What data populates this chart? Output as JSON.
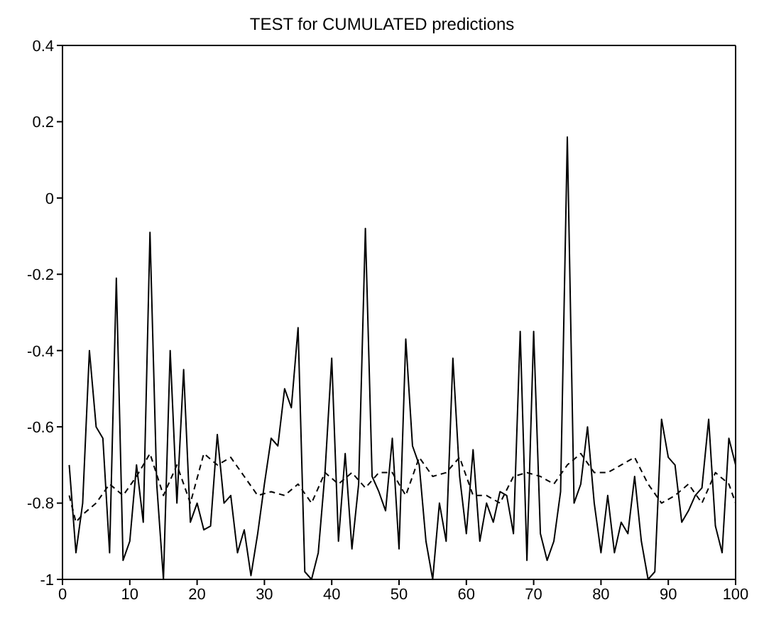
{
  "chart_data": {
    "type": "line",
    "title": "TEST for CUMULATED predictions",
    "xlim": [
      0,
      100
    ],
    "ylim": [
      -1,
      0.4
    ],
    "xticks": [
      0,
      10,
      20,
      30,
      40,
      50,
      60,
      70,
      80,
      90,
      100
    ],
    "yticks": [
      -1,
      -0.8,
      -0.6,
      -0.4,
      -0.2,
      0,
      0.2,
      0.4
    ],
    "grid": false,
    "legend": false,
    "marker": "none",
    "series": [
      {
        "color": "#000000",
        "line_style": "solid",
        "x": [
          1,
          2,
          3,
          4,
          5,
          6,
          7,
          8,
          9,
          10,
          11,
          12,
          13,
          14,
          15,
          16,
          17,
          18,
          19,
          20,
          21,
          22,
          23,
          24,
          25,
          26,
          27,
          28,
          29,
          30,
          31,
          32,
          33,
          34,
          35,
          36,
          37,
          38,
          39,
          40,
          41,
          42,
          43,
          44,
          45,
          46,
          47,
          48,
          49,
          50,
          51,
          52,
          53,
          54,
          55,
          56,
          57,
          58,
          59,
          60,
          61,
          62,
          63,
          64,
          65,
          66,
          67,
          68,
          69,
          70,
          71,
          72,
          73,
          74,
          75,
          76,
          77,
          78,
          79,
          80,
          81,
          82,
          83,
          84,
          85,
          86,
          87,
          88,
          89,
          90,
          91,
          92,
          93,
          94,
          95,
          96,
          97,
          98,
          99,
          100
        ],
        "values": [
          -0.7,
          -0.93,
          -0.8,
          -0.4,
          -0.6,
          -0.63,
          -0.93,
          -0.21,
          -0.95,
          -0.9,
          -0.7,
          -0.85,
          -0.09,
          -0.75,
          -1.0,
          -0.4,
          -0.8,
          -0.45,
          -0.85,
          -0.8,
          -0.87,
          -0.86,
          -0.62,
          -0.8,
          -0.78,
          -0.93,
          -0.87,
          -0.99,
          -0.88,
          -0.75,
          -0.63,
          -0.65,
          -0.5,
          -0.55,
          -0.34,
          -0.98,
          -1.0,
          -0.93,
          -0.72,
          -0.42,
          -0.9,
          -0.67,
          -0.92,
          -0.75,
          -0.08,
          -0.73,
          -0.77,
          -0.82,
          -0.63,
          -0.92,
          -0.37,
          -0.65,
          -0.7,
          -0.9,
          -1.0,
          -0.8,
          -0.9,
          -0.42,
          -0.73,
          -0.88,
          -0.66,
          -0.9,
          -0.8,
          -0.85,
          -0.77,
          -0.78,
          -0.88,
          -0.35,
          -0.95,
          -0.35,
          -0.88,
          -0.95,
          -0.9,
          -0.77,
          0.16,
          -0.8,
          -0.75,
          -0.6,
          -0.8,
          -0.93,
          -0.78,
          -0.93,
          -0.85,
          -0.88,
          -0.73,
          -0.9,
          -1.0,
          -0.98,
          -0.58,
          -0.68,
          -0.7,
          -0.85,
          -0.82,
          -0.78,
          -0.76,
          -0.58,
          -0.86,
          -0.93,
          -0.63,
          -0.7
        ]
      },
      {
        "color": "#000000",
        "line_style": "dashed",
        "x": [
          1,
          2,
          3,
          5,
          7,
          9,
          11,
          13,
          15,
          17,
          19,
          21,
          23,
          25,
          27,
          29,
          31,
          33,
          35,
          37,
          39,
          41,
          43,
          45,
          47,
          49,
          51,
          53,
          55,
          57,
          59,
          61,
          63,
          65,
          67,
          69,
          71,
          73,
          75,
          77,
          79,
          81,
          83,
          85,
          87,
          89,
          91,
          93,
          95,
          97,
          99,
          100
        ],
        "values": [
          -0.78,
          -0.85,
          -0.83,
          -0.8,
          -0.75,
          -0.78,
          -0.73,
          -0.67,
          -0.78,
          -0.7,
          -0.8,
          -0.67,
          -0.7,
          -0.68,
          -0.73,
          -0.78,
          -0.77,
          -0.78,
          -0.75,
          -0.8,
          -0.72,
          -0.75,
          -0.72,
          -0.76,
          -0.72,
          -0.72,
          -0.78,
          -0.68,
          -0.73,
          -0.72,
          -0.68,
          -0.78,
          -0.78,
          -0.8,
          -0.73,
          -0.72,
          -0.73,
          -0.75,
          -0.7,
          -0.67,
          -0.72,
          -0.72,
          -0.7,
          -0.68,
          -0.75,
          -0.8,
          -0.78,
          -0.75,
          -0.8,
          -0.72,
          -0.75,
          -0.8
        ]
      }
    ]
  }
}
